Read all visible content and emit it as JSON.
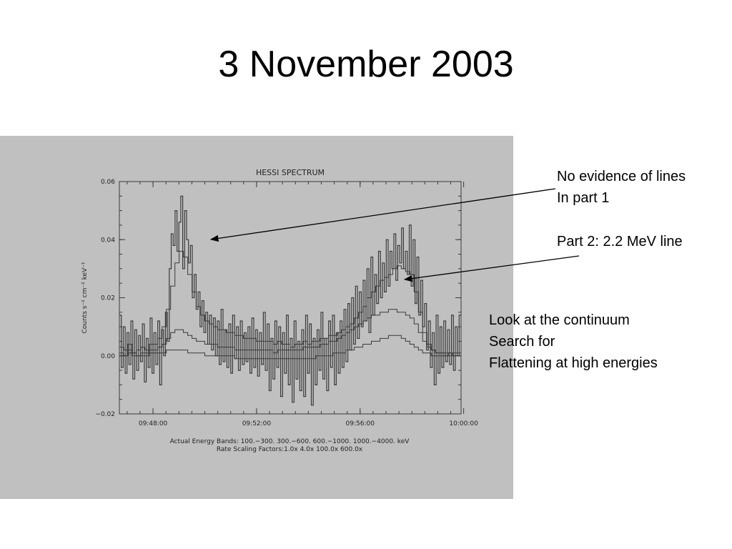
{
  "slide": {
    "title": "3 November 2003"
  },
  "annotations": {
    "note1": [
      "No evidence of lines",
      "In part 1"
    ],
    "note2": [
      "Part 2: 2.2 MeV line"
    ],
    "note3": [
      "Look at the continuum",
      "Search for",
      "Flattening at high energies"
    ]
  },
  "colors": {
    "panel": "#c0c0c0",
    "trace": "#3a3a3a"
  },
  "chart_data": {
    "type": "line",
    "title": "HESSI SPECTRUM",
    "ylabel": "Counts s⁻¹ cm⁻² keV⁻¹",
    "xlabel": "",
    "footer": [
      "Actual Energy Bands: 100.−300. 300.−600. 600.−1000. 1000.−4000. keV",
      "Rate Scaling Factors:1.0x 4.0x 100.0x 600.0x"
    ],
    "ylim": [
      -0.02,
      0.06
    ],
    "y_ticks": [
      {
        "value": -0.02,
        "label": "−0.02"
      },
      {
        "value": 0.0,
        "label": "0.00"
      },
      {
        "value": 0.02,
        "label": "0.02"
      },
      {
        "value": 0.04,
        "label": "0.04"
      },
      {
        "value": 0.06,
        "label": "0.06"
      }
    ],
    "xlim_minutes": [
      -1.3,
      11.9
    ],
    "x_ticks": [
      {
        "value": 0,
        "label": "09:48:00"
      },
      {
        "value": 4,
        "label": "09:52:00"
      },
      {
        "value": 8,
        "label": "09:56:00"
      },
      {
        "value": 12,
        "label": "10:00:00"
      }
    ],
    "grid": false,
    "series": [
      {
        "values": [
          0.003,
          0.002,
          0.004,
          0.001,
          0.002,
          0.003,
          0.002,
          0.004,
          0.004,
          0.006,
          0.01,
          0.016,
          0.024,
          0.032,
          0.036,
          0.034,
          0.028,
          0.022,
          0.017,
          0.014,
          0.012,
          0.011,
          0.01,
          0.009,
          0.009,
          0.008,
          0.008,
          0.007,
          0.007,
          0.006,
          0.006,
          0.006,
          0.005,
          0.005,
          0.005,
          0.005,
          0.004,
          0.005,
          0.004,
          0.004,
          0.003,
          0.004,
          0.004,
          0.005,
          0.004,
          0.005,
          0.005,
          0.006,
          0.006,
          0.007,
          0.007,
          0.008,
          0.009,
          0.01,
          0.011,
          0.013,
          0.015,
          0.017,
          0.02,
          0.022,
          0.024,
          0.026,
          0.027,
          0.028,
          0.03,
          0.031,
          0.03,
          0.029,
          0.028,
          0.022,
          0.015,
          0.008,
          0.004,
          0.002,
          0.001,
          0.001,
          0.0,
          0.001,
          0.0,
          0.0
        ]
      },
      {
        "values": [
          0.001,
          0.0,
          0.002,
          0.001,
          0.0,
          0.001,
          0.001,
          0.002,
          0.002,
          0.003,
          0.004,
          0.006,
          0.008,
          0.009,
          0.009,
          0.008,
          0.007,
          0.006,
          0.005,
          0.005,
          0.004,
          0.004,
          0.004,
          0.003,
          0.003,
          0.003,
          0.003,
          0.002,
          0.002,
          0.002,
          0.002,
          0.002,
          0.002,
          0.002,
          0.002,
          0.002,
          0.001,
          0.002,
          0.002,
          0.002,
          0.002,
          0.002,
          0.002,
          0.003,
          0.003,
          0.003,
          0.003,
          0.004,
          0.004,
          0.005,
          0.005,
          0.006,
          0.007,
          0.008,
          0.009,
          0.01,
          0.011,
          0.012,
          0.013,
          0.014,
          0.014,
          0.015,
          0.015,
          0.016,
          0.016,
          0.015,
          0.015,
          0.014,
          0.013,
          0.011,
          0.008,
          0.005,
          0.003,
          0.002,
          0.001,
          0.001,
          0.001,
          0.001,
          0.001,
          0.001
        ]
      },
      {
        "values": [
          0.0,
          0.0,
          0.001,
          0.0,
          0.0,
          0.0,
          0.0,
          0.001,
          0.001,
          0.001,
          0.001,
          0.002,
          0.002,
          0.002,
          0.002,
          0.002,
          0.001,
          0.001,
          0.001,
          0.001,
          0.0,
          0.0,
          0.0,
          0.0,
          0.0,
          0.0,
          0.0,
          -0.001,
          -0.001,
          -0.001,
          -0.001,
          -0.001,
          -0.001,
          -0.001,
          -0.001,
          -0.001,
          -0.001,
          -0.001,
          -0.001,
          -0.001,
          -0.001,
          -0.001,
          -0.001,
          -0.001,
          -0.001,
          -0.001,
          0.0,
          0.0,
          0.0,
          0.0,
          0.001,
          0.001,
          0.001,
          0.002,
          0.002,
          0.003,
          0.003,
          0.004,
          0.004,
          0.005,
          0.005,
          0.006,
          0.006,
          0.007,
          0.007,
          0.007,
          0.006,
          0.005,
          0.004,
          0.003,
          0.002,
          0.001,
          0.001,
          0.0,
          0.0,
          0.0,
          0.0,
          0.0,
          0.0,
          0.0
        ]
      },
      {
        "values": [
          0.014,
          -0.004,
          0.01,
          -0.006,
          0.008,
          -0.003,
          0.012,
          -0.008,
          0.009,
          -0.005,
          0.007,
          -0.002,
          0.011,
          -0.009,
          0.006,
          -0.004,
          0.013,
          -0.006,
          0.008,
          -0.003,
          0.012,
          -0.01,
          0.009,
          0.0,
          0.015,
          0.005,
          0.03,
          0.042,
          0.038,
          0.05,
          0.036,
          0.046,
          0.055,
          0.03,
          0.05,
          0.04,
          0.032,
          0.038,
          0.02,
          0.028,
          0.016,
          0.022,
          0.01,
          0.019,
          0.008,
          0.015,
          0.004,
          0.014,
          0.002,
          0.013,
          0.0,
          0.012,
          -0.003,
          0.016,
          -0.002,
          0.009,
          -0.004,
          0.011,
          -0.006,
          0.014,
          -0.001,
          0.01,
          -0.005,
          0.012,
          -0.003,
          0.008,
          -0.002,
          0.01,
          -0.006,
          0.013,
          -0.004,
          0.009,
          -0.007,
          0.008,
          -0.003,
          0.015,
          -0.005,
          0.011,
          -0.012,
          0.006,
          -0.008,
          0.012,
          -0.004,
          0.01,
          -0.014,
          0.008,
          -0.006,
          0.014,
          -0.01,
          0.006,
          -0.016,
          0.012,
          -0.008,
          0.005,
          -0.012,
          0.009,
          -0.014,
          0.014,
          -0.006,
          0.011,
          -0.017,
          0.006,
          -0.01,
          0.009,
          -0.005,
          0.015,
          -0.008,
          0.006,
          -0.012,
          0.012,
          -0.004,
          0.014,
          -0.01,
          0.008,
          -0.006,
          0.012,
          -0.004,
          0.016,
          -0.002,
          0.018,
          0.002,
          0.02,
          0.004,
          0.024,
          0.006,
          0.022,
          0.01,
          0.026,
          0.012,
          0.03,
          0.008,
          0.034,
          0.014,
          0.028,
          0.018,
          0.036,
          0.02,
          0.032,
          0.022,
          0.04,
          0.024,
          0.036,
          0.03,
          0.042,
          0.026,
          0.038,
          0.032,
          0.044,
          0.03,
          0.036,
          0.028,
          0.045,
          0.024,
          0.04,
          0.018,
          0.034,
          0.014,
          0.026,
          0.01,
          0.018,
          0.002,
          0.012,
          -0.004,
          0.008,
          -0.01,
          0.014,
          -0.006,
          0.01,
          -0.004,
          0.012,
          -0.002,
          0.009,
          -0.003,
          0.014,
          -0.005,
          0.01,
          0.0,
          0.014
        ]
      }
    ]
  }
}
